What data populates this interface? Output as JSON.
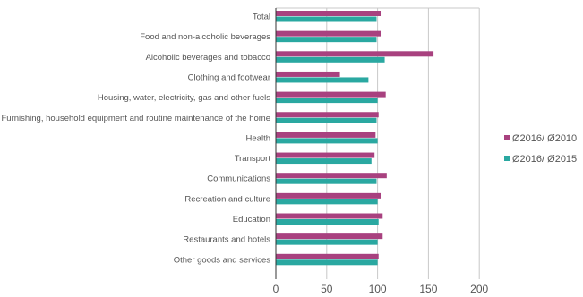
{
  "chart_data": {
    "type": "bar",
    "orientation": "horizontal",
    "categories": [
      "Total",
      "Food and non-alcoholic beverages",
      "Alcoholic beverages and tobacco",
      "Clothing and footwear",
      "Housing, water, electricity, gas and other fuels",
      "Furnishing, household equipment and routine maintenance of the home",
      "Health",
      "Transport",
      "Communications",
      "Recreation and culture",
      "Education",
      "Restaurants and hotels",
      "Other goods and services"
    ],
    "series": [
      {
        "name": "Ø2016/ Ø2010",
        "color": "#a8417f",
        "values": [
          103,
          103,
          155,
          63,
          108,
          101,
          98,
          97,
          109,
          103,
          105,
          105,
          101
        ]
      },
      {
        "name": "Ø2016/ Ø2015",
        "color": "#2aa8a1",
        "values": [
          99,
          99,
          107,
          91,
          100,
          99,
          100,
          94,
          99,
          100,
          101,
          100,
          100
        ]
      }
    ],
    "xlim": [
      0,
      200
    ],
    "xticks": [
      "0",
      "50",
      "100",
      "150",
      "200"
    ],
    "grid": true,
    "legend_position": "right"
  }
}
